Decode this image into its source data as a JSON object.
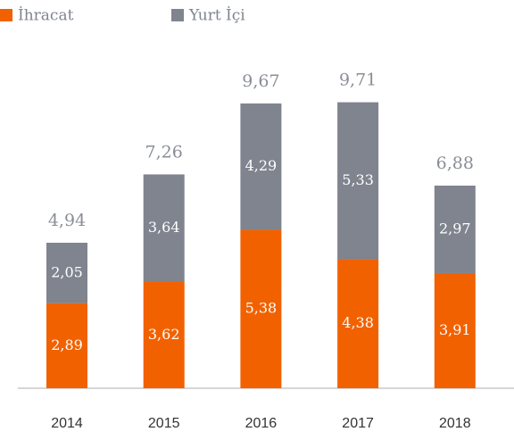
{
  "chart_data": {
    "type": "stacked_bar",
    "categories": [
      "2014",
      "2015",
      "2016",
      "2017",
      "2018"
    ],
    "series": [
      {
        "name": "İhracat",
        "color": "#f26100",
        "values": [
          2.89,
          3.62,
          5.38,
          4.38,
          3.91
        ],
        "value_labels": [
          "2,89",
          "3,62",
          "5,38",
          "4,38",
          "3,91"
        ]
      },
      {
        "name": "Yurt İçi",
        "color": "#7f848e",
        "values": [
          2.05,
          3.64,
          4.29,
          5.33,
          2.97
        ],
        "value_labels": [
          "2,05",
          "3,64",
          "4,29",
          "5,33",
          "2,97"
        ]
      }
    ],
    "totals": [
      4.94,
      7.26,
      9.67,
      9.71,
      6.88
    ],
    "total_labels": [
      "4,94",
      "7,26",
      "9,67",
      "9,71",
      "6,88"
    ],
    "legend": "top-left"
  }
}
